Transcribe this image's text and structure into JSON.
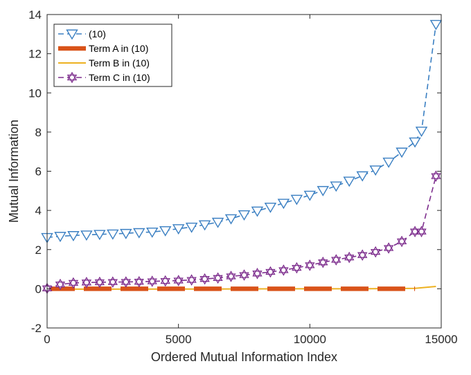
{
  "chart_data": {
    "type": "line",
    "xlabel": "Ordered Mutual Information Index",
    "ylabel": "Mutual Information",
    "xlim": [
      0,
      15000
    ],
    "ylim": [
      -2,
      14
    ],
    "xticks": [
      0,
      5000,
      10000,
      15000
    ],
    "yticks": [
      -2,
      0,
      2,
      4,
      6,
      8,
      10,
      12,
      14
    ],
    "xtick_labels": [
      "0",
      "5000",
      "10000",
      "15000"
    ],
    "ytick_labels": [
      "-2",
      "0",
      "2",
      "4",
      "6",
      "8",
      "10",
      "12",
      "14"
    ],
    "grid": false,
    "legend_position": "top-left",
    "series": [
      {
        "name": "(10)",
        "color": "#3a7fc2",
        "line_style": "dashed",
        "marker": "triangle-down",
        "x": [
          0,
          500,
          1000,
          1500,
          2000,
          2500,
          3000,
          3500,
          4000,
          4500,
          5000,
          5500,
          6000,
          6500,
          7000,
          7500,
          8000,
          8500,
          9000,
          9500,
          10000,
          10500,
          11000,
          11500,
          12000,
          12500,
          13000,
          13500,
          14000,
          14250,
          14800
        ],
        "y": [
          2.62,
          2.68,
          2.72,
          2.75,
          2.78,
          2.8,
          2.83,
          2.87,
          2.9,
          2.97,
          3.07,
          3.15,
          3.27,
          3.4,
          3.58,
          3.78,
          3.97,
          4.17,
          4.37,
          4.57,
          4.78,
          5.02,
          5.25,
          5.5,
          5.77,
          6.07,
          6.47,
          6.98,
          7.5,
          8.05,
          13.5
        ]
      },
      {
        "name": "Term A in (10)",
        "color": "#d95319",
        "line_style": "thick-dashed",
        "marker": "none",
        "x": [
          0,
          14000
        ],
        "y": [
          0.0,
          0.0
        ]
      },
      {
        "name": "Term B in (10)",
        "color": "#edb120",
        "line_style": "solid",
        "marker": "none",
        "x": [
          0,
          1000,
          3000,
          6000,
          9000,
          12000,
          14000,
          14800
        ],
        "y": [
          0.0,
          -0.02,
          -0.02,
          -0.01,
          0.0,
          0.0,
          0.02,
          0.12
        ]
      },
      {
        "name": "Term C in (10)",
        "color": "#7e2f8e",
        "line_style": "dashed",
        "marker": "hexagram",
        "x": [
          0,
          500,
          1000,
          1500,
          2000,
          2500,
          3000,
          3500,
          4000,
          4500,
          5000,
          5500,
          6000,
          6500,
          7000,
          7500,
          8000,
          8500,
          9000,
          9500,
          10000,
          10500,
          11000,
          11500,
          12000,
          12500,
          13000,
          13500,
          14000,
          14250,
          14800
        ],
        "y": [
          0.02,
          0.22,
          0.3,
          0.32,
          0.33,
          0.34,
          0.35,
          0.36,
          0.38,
          0.4,
          0.42,
          0.45,
          0.5,
          0.55,
          0.63,
          0.7,
          0.78,
          0.86,
          0.95,
          1.07,
          1.2,
          1.35,
          1.48,
          1.6,
          1.72,
          1.88,
          2.08,
          2.42,
          2.92,
          2.92,
          5.75
        ]
      }
    ]
  }
}
